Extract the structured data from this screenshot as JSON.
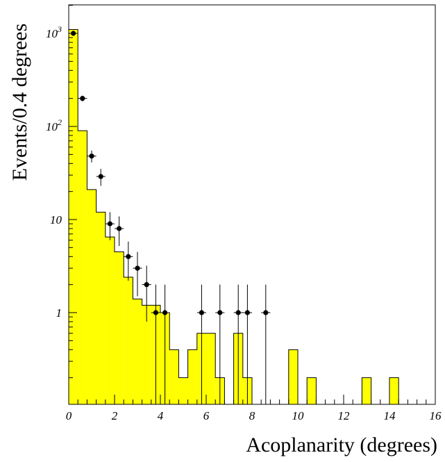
{
  "chart_data": {
    "type": "bar",
    "title": "",
    "xlabel": "Acoplanarity (degrees)",
    "ylabel": "Events/0.4 degrees",
    "xlim": [
      0,
      16
    ],
    "ylim": [
      0.1,
      2000
    ],
    "yscale": "log",
    "grid": false,
    "legend": "none",
    "x_ticks": [
      0,
      2,
      4,
      6,
      8,
      10,
      12,
      14,
      16
    ],
    "x_tick_labels": [
      "0",
      "2",
      "4",
      "6",
      "8",
      "10",
      "12",
      "14",
      "16"
    ],
    "y_ticks": [
      1,
      10,
      100,
      1000
    ],
    "y_tick_labels": [
      "1",
      "10",
      "10^2",
      "10^3"
    ],
    "series": [
      {
        "style": "filled-histogram",
        "color": "#ffff00",
        "bin_width": 0.4,
        "bin_edges_start": 0,
        "values": [
          1100,
          90,
          21,
          12,
          6.5,
          4.5,
          2.4,
          1.4,
          1.2,
          1.2,
          1,
          0.4,
          0.2,
          0.4,
          0.6,
          0.6,
          0.2,
          0,
          0.6,
          0.2,
          0,
          0,
          0,
          0,
          0.4,
          0,
          0.2,
          0,
          0,
          0,
          0,
          0,
          0.2,
          0,
          0,
          0.2,
          0,
          0,
          0,
          0
        ]
      },
      {
        "style": "points-with-errors",
        "color": "#000000",
        "x": [
          0.2,
          0.6,
          1.0,
          1.4,
          1.8,
          2.2,
          2.6,
          3.0,
          3.4,
          3.8,
          4.2,
          5.8,
          6.6,
          7.4,
          7.8,
          8.6
        ],
        "y": [
          1000,
          200,
          48,
          29,
          9,
          8,
          4,
          3,
          2,
          1,
          1,
          1,
          1,
          1,
          1,
          1
        ],
        "y_low": [
          940,
          186,
          41,
          23,
          6,
          5.2,
          2.2,
          1.5,
          0.8,
          0,
          0,
          0,
          0,
          0,
          0,
          0
        ],
        "y_high": [
          1060,
          214,
          55,
          35,
          12,
          10.8,
          5.8,
          4.5,
          3.2,
          2,
          2,
          2,
          2,
          2,
          2,
          2
        ],
        "x_err": 0.2
      }
    ]
  }
}
